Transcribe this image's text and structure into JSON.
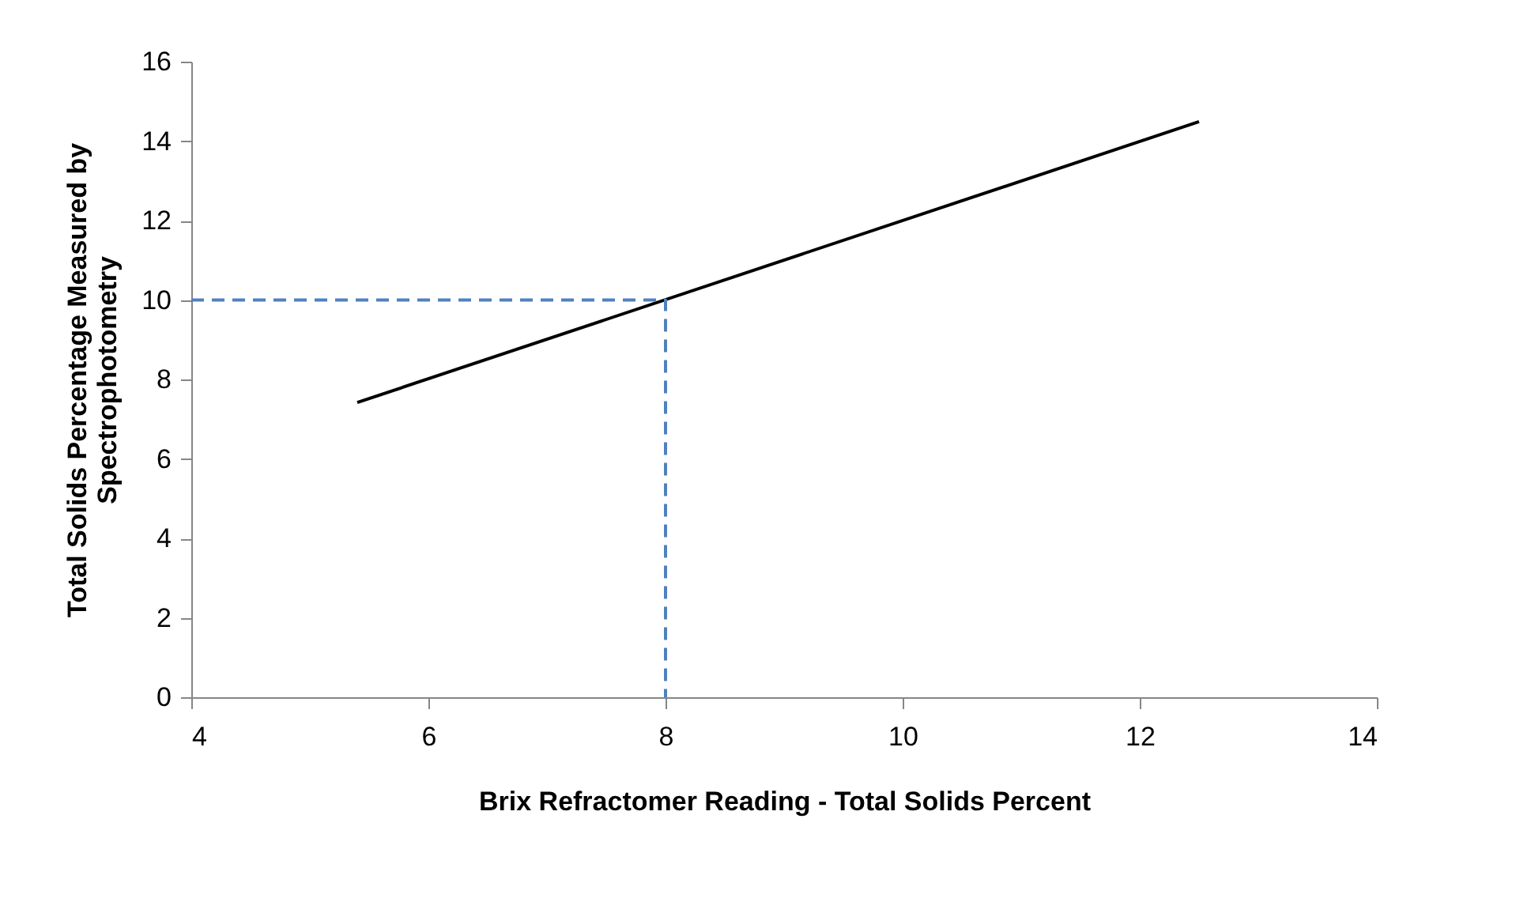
{
  "chart_data": {
    "type": "line",
    "xlabel": "Brix Refractomer Reading - Total Solids Percent",
    "ylabel": "Total Solids Percentage Measured by Spectrophotometry",
    "series": [
      {
        "color": "#000000",
        "x": [
          5.4,
          12.5
        ],
        "values": [
          7.42,
          14.49
        ],
        "line_style": "solid"
      },
      {
        "color": "#4f81bd",
        "x": [
          4,
          8,
          8
        ],
        "values": [
          10,
          10,
          0
        ],
        "line_style": "dashed"
      }
    ],
    "xlim": [
      4,
      14
    ],
    "xticks": [
      4,
      6,
      8,
      10,
      12,
      14
    ],
    "ylim": [
      0,
      16
    ],
    "yticks": [
      0,
      2,
      4,
      6,
      8,
      10,
      12,
      14,
      16
    ],
    "grid": false,
    "marker": "none"
  }
}
